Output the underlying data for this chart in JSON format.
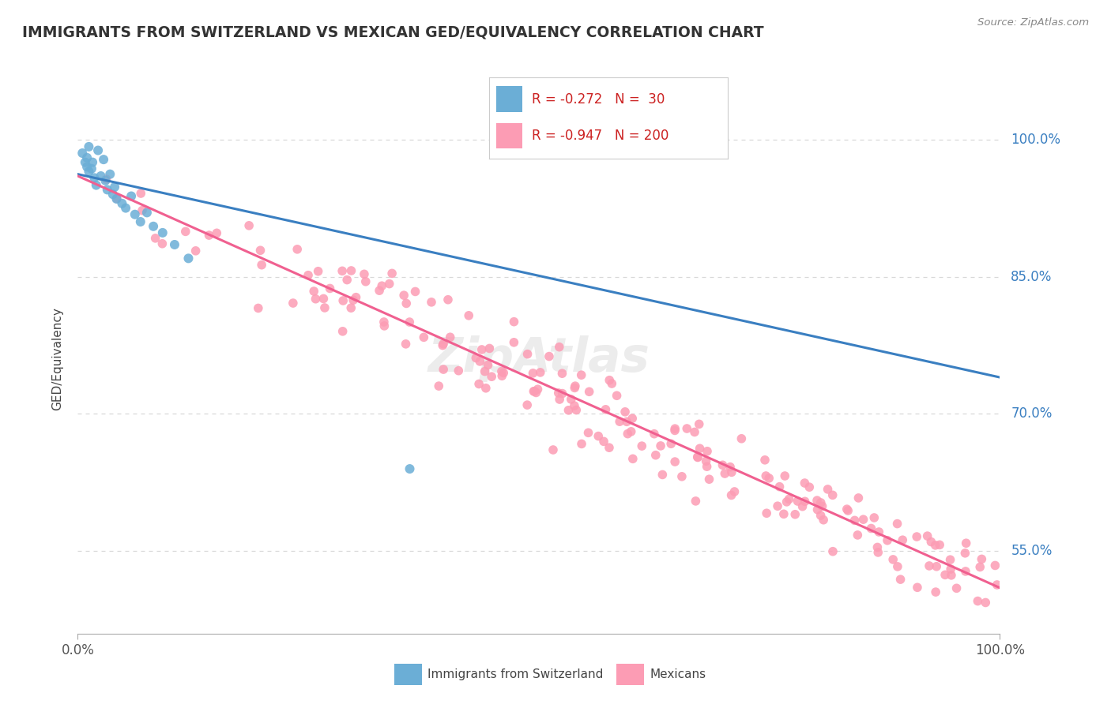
{
  "title": "IMMIGRANTS FROM SWITZERLAND VS MEXICAN GED/EQUIVALENCY CORRELATION CHART",
  "source": "Source: ZipAtlas.com",
  "ylabel": "GED/Equivalency",
  "legend_label1": "Immigrants from Switzerland",
  "legend_label2": "Mexicans",
  "r1": -0.272,
  "n1": 30,
  "r2": -0.947,
  "n2": 200,
  "ytick_labels": [
    "55.0%",
    "70.0%",
    "85.0%",
    "100.0%"
  ],
  "ytick_values": [
    0.55,
    0.7,
    0.85,
    1.0
  ],
  "xtick_labels": [
    "0.0%",
    "100.0%"
  ],
  "xtick_values": [
    0.0,
    1.0
  ],
  "color_swiss": "#6baed6",
  "color_mexican": "#fc9cb4",
  "color_swiss_line": "#3a7fc1",
  "color_mexican_line": "#f06090",
  "color_grid": "#d8d8d8",
  "background_color": "#ffffff",
  "xlim": [
    0.0,
    1.0
  ],
  "ylim": [
    0.46,
    1.06
  ],
  "swiss_line_x0": 0.0,
  "swiss_line_x1": 1.0,
  "swiss_line_y0": 0.962,
  "swiss_line_y1": 0.74,
  "mexican_line_x0": 0.0,
  "mexican_line_x1": 1.0,
  "mexican_line_y0": 0.96,
  "mexican_line_y1": 0.51,
  "swiss_x": [
    0.005,
    0.008,
    0.01,
    0.01,
    0.012,
    0.012,
    0.015,
    0.016,
    0.018,
    0.02,
    0.022,
    0.025,
    0.028,
    0.03,
    0.032,
    0.035,
    0.038,
    0.04,
    0.042,
    0.048,
    0.052,
    0.058,
    0.062,
    0.068,
    0.075,
    0.082,
    0.092,
    0.105,
    0.12,
    0.36
  ],
  "swiss_y": [
    0.985,
    0.975,
    0.97,
    0.98,
    0.992,
    0.965,
    0.968,
    0.975,
    0.958,
    0.95,
    0.988,
    0.96,
    0.978,
    0.955,
    0.945,
    0.962,
    0.94,
    0.948,
    0.935,
    0.93,
    0.925,
    0.938,
    0.918,
    0.91,
    0.92,
    0.905,
    0.898,
    0.885,
    0.87,
    0.64
  ],
  "mex_seed": 17,
  "mex_n": 200
}
